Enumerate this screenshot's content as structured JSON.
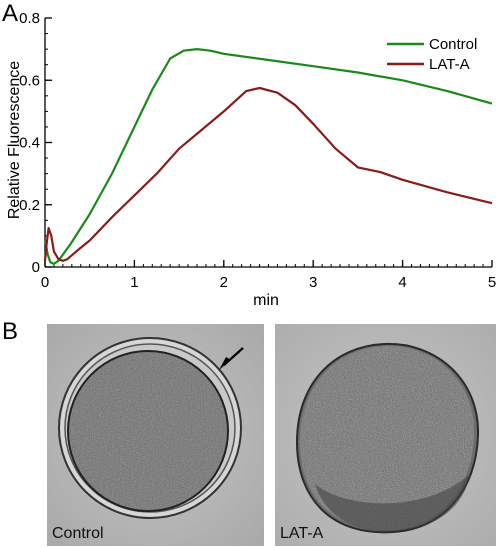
{
  "panels": {
    "a_label": "A",
    "b_label": "B"
  },
  "chart_data": {
    "type": "line",
    "title": "",
    "xlabel": "min",
    "ylabel": "Relative Fluorescence",
    "xlim": [
      0,
      5
    ],
    "ylim": [
      0,
      0.8
    ],
    "xticks": [
      0,
      1,
      2,
      3,
      4,
      5
    ],
    "yticks": [
      0,
      0.2,
      0.4,
      0.6,
      0.8
    ],
    "xtick_labels": [
      "0",
      "1",
      "2",
      "3",
      "4",
      "5"
    ],
    "ytick_labels": [
      "0",
      "0.2",
      "0.4",
      "0.6",
      "0.8"
    ],
    "grid": false,
    "legend_position": "top-right",
    "series": [
      {
        "name": "Control",
        "color": "#1a8a1a",
        "x": [
          0,
          0.03,
          0.06,
          0.1,
          0.15,
          0.2,
          0.3,
          0.5,
          0.75,
          1.0,
          1.2,
          1.4,
          1.55,
          1.7,
          1.85,
          2.0,
          2.5,
          3.0,
          3.5,
          4.0,
          4.5,
          5.0
        ],
        "y": [
          0.09,
          0.04,
          0.015,
          0.01,
          0.02,
          0.04,
          0.08,
          0.17,
          0.3,
          0.45,
          0.57,
          0.67,
          0.695,
          0.7,
          0.695,
          0.685,
          0.665,
          0.645,
          0.625,
          0.6,
          0.565,
          0.525
        ]
      },
      {
        "name": "LAT-A",
        "color": "#8b1a1a",
        "x": [
          0,
          0.02,
          0.04,
          0.07,
          0.1,
          0.15,
          0.2,
          0.25,
          0.35,
          0.5,
          0.75,
          1.0,
          1.25,
          1.5,
          1.75,
          2.0,
          2.25,
          2.4,
          2.6,
          2.8,
          3.0,
          3.25,
          3.5,
          3.75,
          4.0,
          4.5,
          5.0
        ],
        "y": [
          0.02,
          0.08,
          0.125,
          0.1,
          0.05,
          0.025,
          0.02,
          0.025,
          0.05,
          0.085,
          0.16,
          0.23,
          0.3,
          0.38,
          0.44,
          0.5,
          0.565,
          0.575,
          0.56,
          0.52,
          0.46,
          0.38,
          0.32,
          0.305,
          0.28,
          0.24,
          0.205
        ]
      }
    ]
  },
  "images": [
    {
      "label": "Control"
    },
    {
      "label": "LAT-A"
    }
  ]
}
